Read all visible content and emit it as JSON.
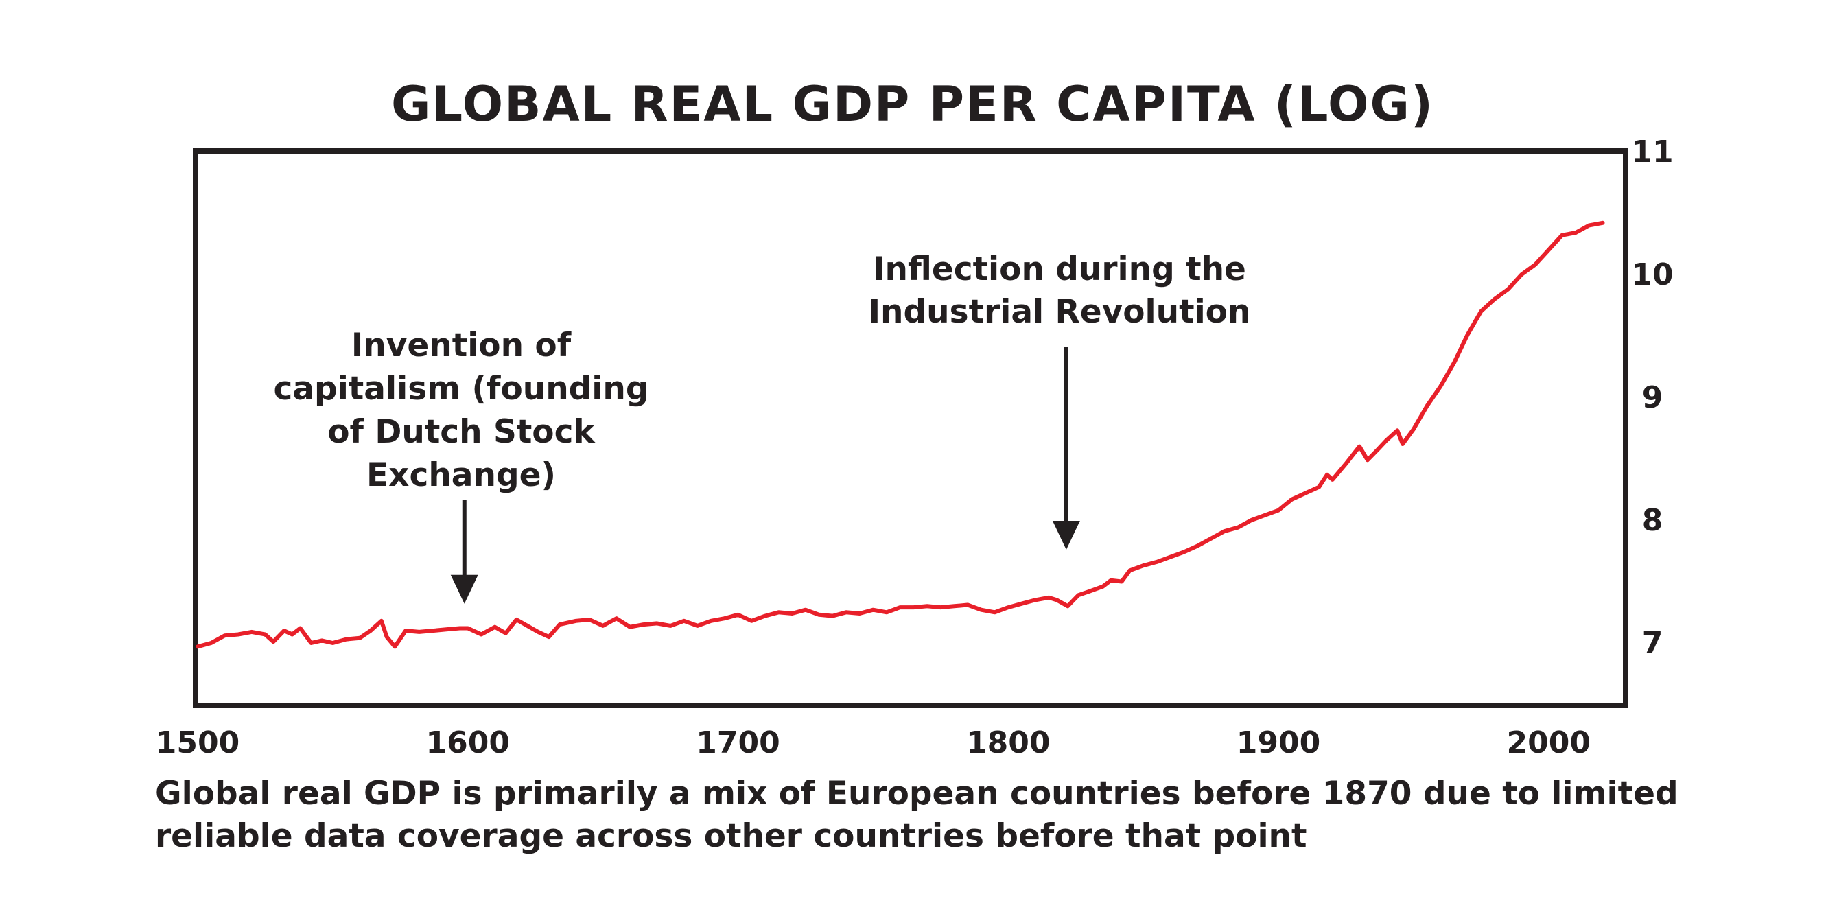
{
  "chart_data": {
    "type": "line",
    "title": "GLOBAL REAL GDP PER CAPITA (LOG)",
    "xlabel": "",
    "ylabel": "",
    "xlim": [
      1500,
      2030
    ],
    "ylim": [
      6.5,
      11
    ],
    "x_ticks": [
      "1500",
      "1600",
      "1700",
      "1800",
      "1900",
      "2000"
    ],
    "y_ticks": [
      "7",
      "8",
      "9",
      "10",
      "11"
    ],
    "y_axis_side": "right",
    "grid": false,
    "series": [
      {
        "name": "Global real GDP per capita (log)",
        "color": "#e8202a",
        "points": [
          [
            1500,
            6.97
          ],
          [
            1505,
            7.0
          ],
          [
            1510,
            7.06
          ],
          [
            1515,
            7.07
          ],
          [
            1520,
            7.09
          ],
          [
            1525,
            7.07
          ],
          [
            1528,
            7.01
          ],
          [
            1532,
            7.1
          ],
          [
            1535,
            7.07
          ],
          [
            1538,
            7.12
          ],
          [
            1542,
            7.0
          ],
          [
            1546,
            7.02
          ],
          [
            1550,
            7.0
          ],
          [
            1555,
            7.03
          ],
          [
            1560,
            7.04
          ],
          [
            1564,
            7.1
          ],
          [
            1568,
            7.18
          ],
          [
            1570,
            7.05
          ],
          [
            1573,
            6.97
          ],
          [
            1577,
            7.1
          ],
          [
            1582,
            7.09
          ],
          [
            1587,
            7.1
          ],
          [
            1592,
            7.11
          ],
          [
            1597,
            7.12
          ],
          [
            1600,
            7.12
          ],
          [
            1605,
            7.07
          ],
          [
            1610,
            7.13
          ],
          [
            1614,
            7.08
          ],
          [
            1618,
            7.19
          ],
          [
            1622,
            7.14
          ],
          [
            1626,
            7.09
          ],
          [
            1630,
            7.05
          ],
          [
            1634,
            7.15
          ],
          [
            1640,
            7.18
          ],
          [
            1645,
            7.19
          ],
          [
            1650,
            7.14
          ],
          [
            1655,
            7.2
          ],
          [
            1660,
            7.13
          ],
          [
            1665,
            7.15
          ],
          [
            1670,
            7.16
          ],
          [
            1675,
            7.14
          ],
          [
            1680,
            7.18
          ],
          [
            1685,
            7.14
          ],
          [
            1690,
            7.18
          ],
          [
            1695,
            7.2
          ],
          [
            1700,
            7.23
          ],
          [
            1705,
            7.18
          ],
          [
            1710,
            7.22
          ],
          [
            1715,
            7.25
          ],
          [
            1720,
            7.24
          ],
          [
            1725,
            7.27
          ],
          [
            1730,
            7.23
          ],
          [
            1735,
            7.22
          ],
          [
            1740,
            7.25
          ],
          [
            1745,
            7.24
          ],
          [
            1750,
            7.27
          ],
          [
            1755,
            7.25
          ],
          [
            1760,
            7.29
          ],
          [
            1765,
            7.29
          ],
          [
            1770,
            7.3
          ],
          [
            1775,
            7.29
          ],
          [
            1780,
            7.3
          ],
          [
            1785,
            7.31
          ],
          [
            1790,
            7.27
          ],
          [
            1795,
            7.25
          ],
          [
            1800,
            7.29
          ],
          [
            1805,
            7.32
          ],
          [
            1810,
            7.35
          ],
          [
            1815,
            7.37
          ],
          [
            1818,
            7.35
          ],
          [
            1822,
            7.3
          ],
          [
            1826,
            7.39
          ],
          [
            1830,
            7.42
          ],
          [
            1835,
            7.46
          ],
          [
            1838,
            7.51
          ],
          [
            1842,
            7.5
          ],
          [
            1845,
            7.59
          ],
          [
            1850,
            7.63
          ],
          [
            1855,
            7.66
          ],
          [
            1860,
            7.7
          ],
          [
            1865,
            7.74
          ],
          [
            1870,
            7.79
          ],
          [
            1875,
            7.85
          ],
          [
            1880,
            7.91
          ],
          [
            1885,
            7.94
          ],
          [
            1890,
            8.0
          ],
          [
            1895,
            8.04
          ],
          [
            1900,
            8.08
          ],
          [
            1905,
            8.17
          ],
          [
            1910,
            8.22
          ],
          [
            1915,
            8.27
          ],
          [
            1918,
            8.37
          ],
          [
            1920,
            8.33
          ],
          [
            1925,
            8.46
          ],
          [
            1930,
            8.6
          ],
          [
            1933,
            8.49
          ],
          [
            1937,
            8.58
          ],
          [
            1940,
            8.65
          ],
          [
            1944,
            8.73
          ],
          [
            1946,
            8.62
          ],
          [
            1950,
            8.74
          ],
          [
            1955,
            8.93
          ],
          [
            1960,
            9.09
          ],
          [
            1965,
            9.28
          ],
          [
            1970,
            9.51
          ],
          [
            1975,
            9.7
          ],
          [
            1980,
            9.8
          ],
          [
            1985,
            9.88
          ],
          [
            1990,
            10.0
          ],
          [
            1995,
            10.08
          ],
          [
            2000,
            10.2
          ],
          [
            2005,
            10.32
          ],
          [
            2010,
            10.34
          ],
          [
            2015,
            10.4
          ],
          [
            2020,
            10.42
          ]
        ]
      }
    ],
    "annotations": [
      {
        "lines": [
          "Invention of",
          "capitalism (founding",
          "of Dutch Stock",
          "Exchange)"
        ],
        "arrow_x": 1600,
        "arrow_tip_y": 7.32
      },
      {
        "lines": [
          "Inflection during the",
          "Industrial Revolution"
        ],
        "arrow_x": 1822,
        "arrow_tip_y": 7.76
      }
    ],
    "footnote": [
      "Global real GDP is primarily a mix of European countries before 1870 due to limited",
      "reliable data coverage across other countries before that point"
    ]
  }
}
